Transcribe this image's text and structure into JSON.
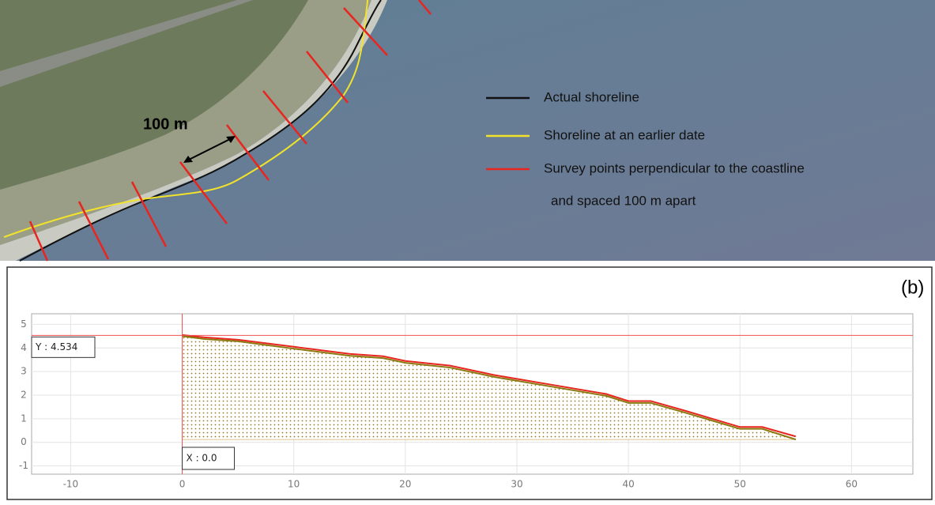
{
  "map": {
    "scale_label": "100 m",
    "legend": [
      {
        "label": "Actual shoreline",
        "color": "#111111"
      },
      {
        "label": "Shoreline at an earlier date",
        "color": "#f2e32a"
      },
      {
        "label": "Survey points perpendicular to the coastline",
        "color": "#e8251f"
      }
    ],
    "legend_note": "and spaced 100 m apart"
  },
  "chart_data": {
    "type": "line",
    "panel_label": "(b)",
    "x": [
      0,
      2,
      5,
      10,
      15,
      18,
      20,
      24,
      28,
      33,
      38,
      40,
      42,
      45,
      50,
      52,
      55
    ],
    "series": [
      {
        "color": "#e8251f",
        "values": [
          4.55,
          4.45,
          4.35,
          4.05,
          3.75,
          3.65,
          3.45,
          3.25,
          2.85,
          2.45,
          2.05,
          1.75,
          1.75,
          1.35,
          0.65,
          0.65,
          0.25
        ]
      },
      {
        "color": "#8a7a10",
        "values": [
          4.5,
          4.38,
          4.28,
          3.97,
          3.67,
          3.57,
          3.37,
          3.17,
          2.77,
          2.37,
          1.97,
          1.67,
          1.67,
          1.27,
          0.57,
          0.57,
          0.12
        ]
      }
    ],
    "fill_color": "#b98a1a",
    "xlim": [
      -13.5,
      65.5
    ],
    "ylim": [
      -1.35,
      5.45
    ],
    "xticks": [
      -10,
      0,
      10,
      20,
      30,
      40,
      50,
      60
    ],
    "yticks": [
      -1,
      0,
      1,
      2,
      3,
      4,
      5
    ],
    "grid": true,
    "crosshair": {
      "x": 0,
      "y": 4.534,
      "color": "#f05050",
      "x_label": "X : 0.0",
      "y_label": "Y : 4.534"
    }
  }
}
